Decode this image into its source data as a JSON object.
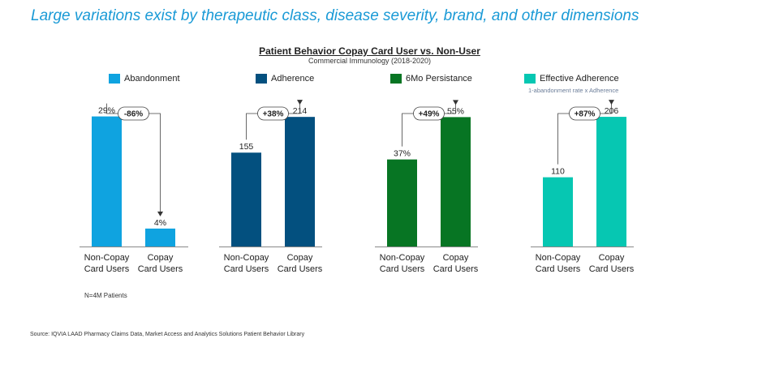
{
  "headline": "Large variations exist by therapeutic class, disease severity, brand, and other dimensions",
  "title": "Patient Behavior Copay Card User vs. Non-User",
  "subtitle": "Commercial Immunology (2018-2020)",
  "legend": [
    {
      "label": "Abandonment",
      "color": "#0fa3e0"
    },
    {
      "label": "Adherence",
      "color": "#03507f"
    },
    {
      "label": "6Mo Persistance",
      "color": "#077523"
    },
    {
      "label": "Effective Adherence",
      "color": "#06c7b2"
    }
  ],
  "legend_note": "1-abandonment rate x Adherence",
  "footnote": "N=4M Patients",
  "source": "Source: IQVIA LAAD Pharmacy Claims Data, Market Access and Analytics Solutions Patient Behavior Library",
  "chart_data": [
    {
      "type": "bar",
      "series_name": "Abandonment",
      "color": "#0fa3e0",
      "categories": [
        "Non-Copay Card Users",
        "Copay Card Users"
      ],
      "values": [
        29,
        4
      ],
      "value_labels": [
        "29%",
        "4%"
      ],
      "ylim": [
        0,
        32
      ],
      "change_label": "-86%"
    },
    {
      "type": "bar",
      "series_name": "Adherence",
      "color": "#03507f",
      "categories": [
        "Non-Copay Card Users",
        "Copay Card Users"
      ],
      "values": [
        155,
        214
      ],
      "value_labels": [
        "155",
        "214"
      ],
      "ylim": [
        0,
        237
      ],
      "change_label": "+38%"
    },
    {
      "type": "bar",
      "series_name": "6Mo Persistance",
      "color": "#077523",
      "categories": [
        "Non-Copay Card Users",
        "Copay Card Users"
      ],
      "values": [
        37,
        55
      ],
      "value_labels": [
        "37%",
        "55%"
      ],
      "ylim": [
        0,
        61
      ],
      "change_label": "+49%"
    },
    {
      "type": "bar",
      "series_name": "Effective Adherence",
      "color": "#06c7b2",
      "categories": [
        "Non-Copay Card Users",
        "Copay Card Users"
      ],
      "values": [
        110,
        206
      ],
      "value_labels": [
        "110",
        "206"
      ],
      "ylim": [
        0,
        228
      ],
      "change_label": "+87%"
    }
  ]
}
